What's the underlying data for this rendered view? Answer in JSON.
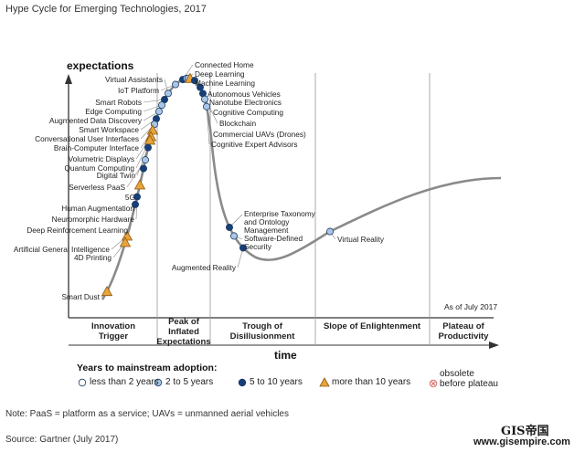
{
  "title": "Hype Cycle for Emerging Technologies, 2017",
  "y_axis_label": "expectations",
  "x_axis_label": "time",
  "as_of": "As of July 2017",
  "phases": [
    {
      "key": "trigger",
      "lines": [
        "Innovation",
        "Trigger"
      ]
    },
    {
      "key": "peak",
      "lines": [
        "Peak of",
        "Inflated",
        "Expectations"
      ]
    },
    {
      "key": "trough",
      "lines": [
        "Trough of",
        "Disillusionment"
      ]
    },
    {
      "key": "slope",
      "lines": [
        "Slope of Enlightenment"
      ]
    },
    {
      "key": "plateau",
      "lines": [
        "Plateau of",
        "Productivity"
      ]
    }
  ],
  "technologies": [
    {
      "name": "Connected Home",
      "years": "5-10"
    },
    {
      "name": "Deep Learning",
      "years": "2-5"
    },
    {
      "name": "Machine Learning",
      "years": "2-5"
    },
    {
      "name": "Virtual Assistants",
      "years": "2-5"
    },
    {
      "name": "IoT Platform",
      "years": "2-5"
    },
    {
      "name": "Autonomous Vehicles",
      "years": ">10"
    },
    {
      "name": "Nanotube Electronics",
      "years": "5-10"
    },
    {
      "name": "Smart Robots",
      "years": "5-10"
    },
    {
      "name": "Edge Computing",
      "years": "2-5"
    },
    {
      "name": "Augmented Data Discovery",
      "years": "2-5"
    },
    {
      "name": "Cognitive Computing",
      "years": "5-10"
    },
    {
      "name": "Blockchain",
      "years": "5-10"
    },
    {
      "name": "Commercial UAVs (Drones)",
      "years": "2-5"
    },
    {
      "name": "Smart Workspace",
      "years": "5-10"
    },
    {
      "name": "Conversational User Interfaces",
      "years": "2-5"
    },
    {
      "name": "Cognitive Expert Advisors",
      "years": "2-5"
    },
    {
      "name": "Brain-Computer Interface",
      "years": ">10"
    },
    {
      "name": "Volumetric Displays",
      "years": ">10"
    },
    {
      "name": "Quantum Computing",
      "years": ">10"
    },
    {
      "name": "Digital Twin",
      "years": "5-10"
    },
    {
      "name": "Serverless PaaS",
      "years": "2-5"
    },
    {
      "name": "5G",
      "years": "5-10"
    },
    {
      "name": "Human Augmentation",
      "years": ">10"
    },
    {
      "name": "Neuromorphic Hardware",
      "years": "5-10"
    },
    {
      "name": "Deep Reinforcement Learning",
      "years": "5-10"
    },
    {
      "name": "Artificial General Intelligence",
      "years": ">10"
    },
    {
      "name": "4D Printing",
      "years": ">10"
    },
    {
      "name": "Smart Dust",
      "years": ">10"
    },
    {
      "name": "Enterprise Taxonomy and Ontology Management",
      "years": "5-10"
    },
    {
      "name": "Software-Defined Security",
      "years": "2-5"
    },
    {
      "name": "Augmented Reality",
      "years": "5-10"
    },
    {
      "name": "Virtual Reality",
      "years": "2-5"
    }
  ],
  "label_lines": {
    "Enterprise Taxonomy and Ontology Management": [
      "Enterprise Taxonomy",
      "and Ontology",
      "Management"
    ],
    "Software-Defined Security": [
      "Software-Defined",
      "Security"
    ]
  },
  "legend": {
    "title": "Years to mainstream adoption:",
    "items": [
      {
        "key": "<2",
        "label": "less than 2 years",
        "color": "#ffffff"
      },
      {
        "key": "2-5",
        "label": "2 to 5 years",
        "color": "#a9c6e6"
      },
      {
        "key": "5-10",
        "label": "5 to 10 years",
        "color": "#163f7a"
      },
      {
        "key": ">10",
        "label": "more than 10 years",
        "color": "#e8a33a"
      }
    ],
    "obsolete": {
      "lines": [
        "obsolete",
        "before plateau"
      ],
      "color": "#d46a6a"
    }
  },
  "note": "Note: PaaS = platform as a service; UAVs = unmanned aerial vehicles",
  "source": "Source: Gartner (July 2017)",
  "watermark": {
    "line1": "GIS帝国",
    "line2": "www.gisempire.com"
  },
  "colors": {
    "curve": "#8a8a8a",
    "axis": "#333333",
    "grid": "#9a9a9a"
  }
}
